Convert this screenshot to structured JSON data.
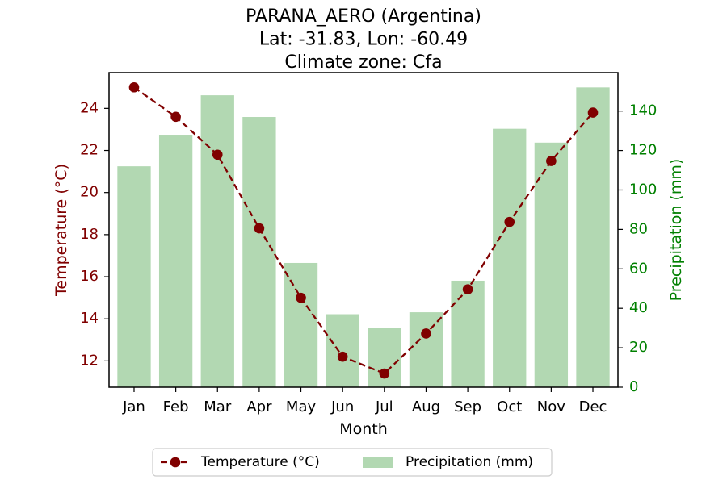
{
  "chart_data": {
    "type": "bar+line",
    "title_lines": [
      "PARANA_AERO (Argentina)",
      "Lat: -31.83, Lon: -60.49",
      "Climate zone: Cfa"
    ],
    "xlabel": "Month",
    "ylabel_left": "Temperature (°C)",
    "ylabel_right": "Precipitation (mm)",
    "categories": [
      "Jan",
      "Feb",
      "Mar",
      "Apr",
      "May",
      "Jun",
      "Jul",
      "Aug",
      "Sep",
      "Oct",
      "Nov",
      "Dec"
    ],
    "series": [
      {
        "name": "Temperature (°C)",
        "type": "line",
        "axis": "left",
        "color": "#800000",
        "values": [
          25.0,
          23.6,
          21.8,
          18.3,
          15.0,
          12.2,
          11.4,
          13.3,
          15.4,
          18.6,
          21.5,
          23.8
        ]
      },
      {
        "name": "Precipitation (mm)",
        "type": "bar",
        "axis": "right",
        "color": "#b2d8b2",
        "values": [
          112,
          128,
          148,
          137,
          63,
          37,
          30,
          38,
          54,
          131,
          124,
          152
        ]
      }
    ],
    "ylim_left": [
      10.75,
      25.7
    ],
    "yticks_left": [
      12,
      14,
      16,
      18,
      20,
      22,
      24
    ],
    "ylim_right": [
      0,
      159.5
    ],
    "yticks_right": [
      0,
      20,
      40,
      60,
      80,
      100,
      120,
      140
    ],
    "left_axis_color": "#800000",
    "right_axis_color": "#008000",
    "grid": false,
    "legend_position": "bottom-center"
  }
}
